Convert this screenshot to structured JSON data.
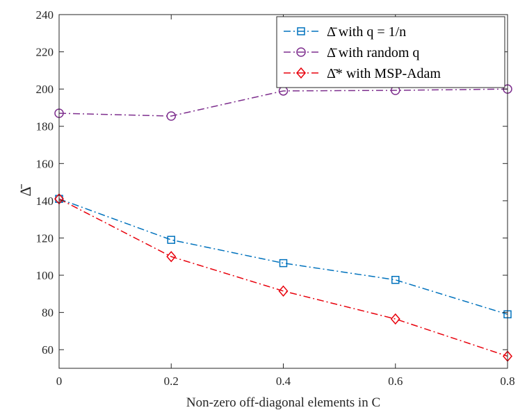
{
  "chart_data": {
    "type": "line",
    "title": "",
    "xlabel": "Non-zero off-diagonal elements in C",
    "ylabel": "Δ̄",
    "x": [
      0,
      0.2,
      0.4,
      0.6,
      0.8
    ],
    "x_tick_labels": [
      "0",
      "0.2",
      "0.4",
      "0.6",
      "0.8"
    ],
    "y_ticks": [
      60,
      80,
      100,
      120,
      140,
      160,
      180,
      200,
      220,
      240
    ],
    "xlim": [
      0,
      0.8
    ],
    "ylim": [
      50,
      240
    ],
    "grid": false,
    "legend_position": "top-right",
    "series": [
      {
        "name": "Δ̄ with q = 1/n",
        "marker": "square",
        "line_style": "dash-dot",
        "color": "#0072BD",
        "values": [
          141,
          119,
          106.5,
          97.5,
          79
        ]
      },
      {
        "name": "Δ̄ with random q",
        "marker": "circle",
        "line_style": "dash-dot",
        "color": "#7E2F8E",
        "values": [
          187,
          185.5,
          199,
          199.3,
          200
        ]
      },
      {
        "name": "Δ̄* with MSP-Adam",
        "marker": "diamond",
        "line_style": "dash-dot",
        "color": "#E8000B",
        "values": [
          141,
          110,
          91.5,
          76.5,
          56.5
        ]
      }
    ]
  }
}
